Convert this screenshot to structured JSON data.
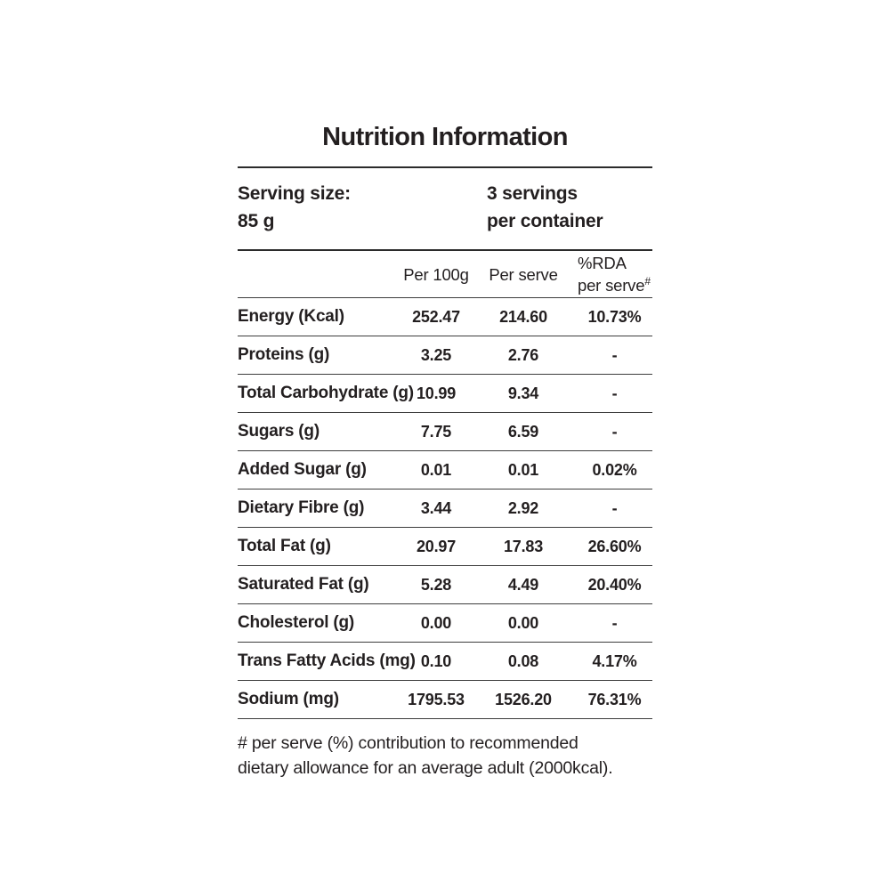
{
  "title": "Nutrition Information",
  "serving": {
    "size_label": "Serving size:",
    "size_value": "85 g",
    "servings_line1": "3 servings",
    "servings_line2": "per container"
  },
  "table": {
    "header": {
      "per_100g": "Per 100g",
      "per_serve": "Per serve",
      "rda_line1": "%RDA",
      "rda_line2": "per serve",
      "rda_sup": "#"
    },
    "rows": [
      {
        "label": "Energy (Kcal)",
        "per_100g": "252.47",
        "per_serve": "214.60",
        "rda": "10.73%"
      },
      {
        "label": "Proteins (g)",
        "per_100g": "3.25",
        "per_serve": "2.76",
        "rda": "-"
      },
      {
        "label": "Total Carbohydrate (g)",
        "per_100g": "10.99",
        "per_serve": "9.34",
        "rda": "-"
      },
      {
        "label": "Sugars (g)",
        "per_100g": "7.75",
        "per_serve": "6.59",
        "rda": "-"
      },
      {
        "label": "Added Sugar (g)",
        "per_100g": "0.01",
        "per_serve": "0.01",
        "rda": "0.02%"
      },
      {
        "label": "Dietary Fibre (g)",
        "per_100g": "3.44",
        "per_serve": "2.92",
        "rda": "-"
      },
      {
        "label": "Total Fat (g)",
        "per_100g": "20.97",
        "per_serve": "17.83",
        "rda": "26.60%"
      },
      {
        "label": "Saturated Fat (g)",
        "per_100g": "5.28",
        "per_serve": "4.49",
        "rda": "20.40%"
      },
      {
        "label": "Cholesterol (g)",
        "per_100g": "0.00",
        "per_serve": "0.00",
        "rda": "-"
      },
      {
        "label": "Trans Fatty Acids (mg)",
        "per_100g": "0.10",
        "per_serve": "0.08",
        "rda": "4.17%"
      },
      {
        "label": "Sodium (mg)",
        "per_100g": "1795.53",
        "per_serve": "1526.20",
        "rda": "76.31%"
      }
    ]
  },
  "footnote": {
    "line1": "# per serve (%) contribution to recommended",
    "line2": "dietary allowance for an average adult (2000kcal)."
  },
  "colors": {
    "text": "#231f20",
    "rule_heavy": "#2b2b2b",
    "rule_row": "#3d3d3d",
    "background": "#ffffff"
  }
}
